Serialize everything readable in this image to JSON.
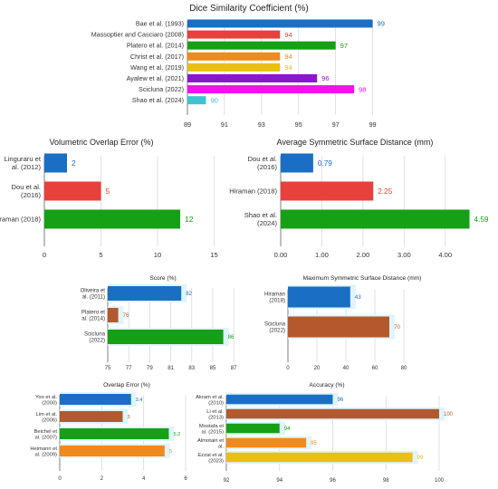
{
  "colors": {
    "blue": "#1a6fc4",
    "red": "#e8403a",
    "green": "#15a015",
    "orange": "#f08a1c",
    "yellow": "#e8c010",
    "purple": "#8e14d4",
    "magenta": "#f012e8",
    "teal": "#3ec4cc",
    "brown": "#b4582e"
  },
  "chart_data": [
    {
      "type": "bar",
      "orientation": "horizontal",
      "title": "Dice Similarity Coefficient (%)",
      "categories": [
        "Bae et al. (1993)",
        "Massoptier and Casciaro (2008)",
        "Platero et al. (2014)",
        "Christ et al. (2017)",
        "Wang et al. (2019)",
        "Ayalew et al. (2021)",
        "Scicluna (2022)",
        "Shao et al. (2024)"
      ],
      "values": [
        99,
        94,
        97,
        94,
        94,
        96,
        98,
        90
      ],
      "data_labels": [
        "99",
        "94",
        "97",
        "94",
        "94",
        "96",
        "98",
        "90"
      ],
      "bar_colors": [
        "blue",
        "red",
        "green",
        "orange",
        "yellow",
        "purple",
        "magenta",
        "teal"
      ],
      "xlim": [
        89,
        100
      ],
      "xticks": [
        89,
        91,
        93,
        95,
        97,
        99
      ],
      "xtick_labels": [
        "89",
        "91",
        "93",
        "95",
        "97",
        "99"
      ],
      "grid": true
    },
    {
      "type": "bar",
      "orientation": "horizontal",
      "title": "Volumetric Overlap Error (%)",
      "categories": [
        "Linguraru et al. (2012)",
        "Dou et al. (2016)",
        "Hiraman (2018)"
      ],
      "values": [
        2,
        5,
        12
      ],
      "data_labels": [
        "2",
        "5",
        "12"
      ],
      "bar_colors": [
        "blue",
        "red",
        "green"
      ],
      "xlim": [
        0,
        16
      ],
      "xticks": [
        0,
        5,
        10,
        15
      ],
      "xtick_labels": [
        "0",
        "5",
        "10",
        "15"
      ],
      "grid": true
    },
    {
      "type": "bar",
      "orientation": "horizontal",
      "title": "Average Symmetric Surface Distance (mm)",
      "categories": [
        "Dou et al. (2016)",
        "Hiraman (2018)",
        "Shao et al. (2024)"
      ],
      "values": [
        0.79,
        2.25,
        4.59
      ],
      "data_labels": [
        "0.79",
        "2.25",
        "4.59"
      ],
      "bar_colors": [
        "blue",
        "red",
        "green"
      ],
      "xlim": [
        0,
        4.6
      ],
      "xticks": [
        0,
        1,
        2,
        3,
        4
      ],
      "xtick_labels": [
        "0.00",
        "1.00",
        "2.00",
        "3.00",
        "4.00"
      ],
      "grid": true
    },
    {
      "type": "bar",
      "orientation": "horizontal",
      "title": "Score (%)",
      "categories": [
        "Oliveira et al. (2011)",
        "Platero et al. (2014)",
        "Scicluna (2022)"
      ],
      "values": [
        82,
        76,
        86
      ],
      "data_labels": [
        "82",
        "76",
        "86"
      ],
      "bar_colors": [
        "blue",
        "brown",
        "green"
      ],
      "xlim": [
        75,
        87.5
      ],
      "xticks": [
        75,
        77,
        79,
        81,
        83,
        85,
        87
      ],
      "xtick_labels": [
        "75",
        "77",
        "79",
        "81",
        "83",
        "85",
        "87"
      ],
      "grid": true
    },
    {
      "type": "bar",
      "orientation": "horizontal",
      "title": "Maximum Symmetric Surface Distance (mm)",
      "categories": [
        "Hiraman (2018)",
        "Scicluna (2022)"
      ],
      "values": [
        43,
        70
      ],
      "data_labels": [
        "43",
        "70"
      ],
      "bar_colors": [
        "blue",
        "brown"
      ],
      "xlim": [
        0,
        90
      ],
      "xticks": [
        0,
        20,
        40,
        60,
        80
      ],
      "xtick_labels": [
        "0",
        "20",
        "40",
        "60",
        "80"
      ],
      "grid": true
    },
    {
      "type": "bar",
      "orientation": "horizontal",
      "title": "Overlap Error (%)",
      "categories": [
        "Yoo et al. (2000)",
        "Lim et al. (2006)",
        "Beichel et al. (2007)",
        "Heimann et al. (2009)"
      ],
      "values": [
        3.4,
        3,
        5.2,
        5
      ],
      "data_labels": [
        "3.4",
        "3",
        "5.2",
        "5"
      ],
      "bar_colors": [
        "blue",
        "brown",
        "green",
        "orange"
      ],
      "xlim": [
        0,
        6
      ],
      "xticks": [
        0,
        2,
        4,
        6
      ],
      "xtick_labels": [
        "0",
        "2",
        "4",
        "6"
      ],
      "grid": true
    },
    {
      "type": "bar",
      "orientation": "horizontal",
      "title": "Accuracy (%)",
      "categories": [
        "Akram et al. (2010)",
        "Li et al. (2013)",
        "Mostafa et al. (2015)",
        "Almotairi et al.",
        "Ezzat et al. (2023)"
      ],
      "values": [
        96,
        100,
        94,
        95,
        99
      ],
      "data_labels": [
        "96",
        "100",
        "94",
        "95",
        "99"
      ],
      "bar_colors": [
        "blue",
        "brown",
        "green",
        "orange",
        "yellow"
      ],
      "xlim": [
        92,
        100
      ],
      "xticks": [
        92,
        94,
        96,
        98,
        100
      ],
      "xtick_labels": [
        "92",
        "94",
        "96",
        "98",
        "100"
      ],
      "grid": true
    }
  ]
}
